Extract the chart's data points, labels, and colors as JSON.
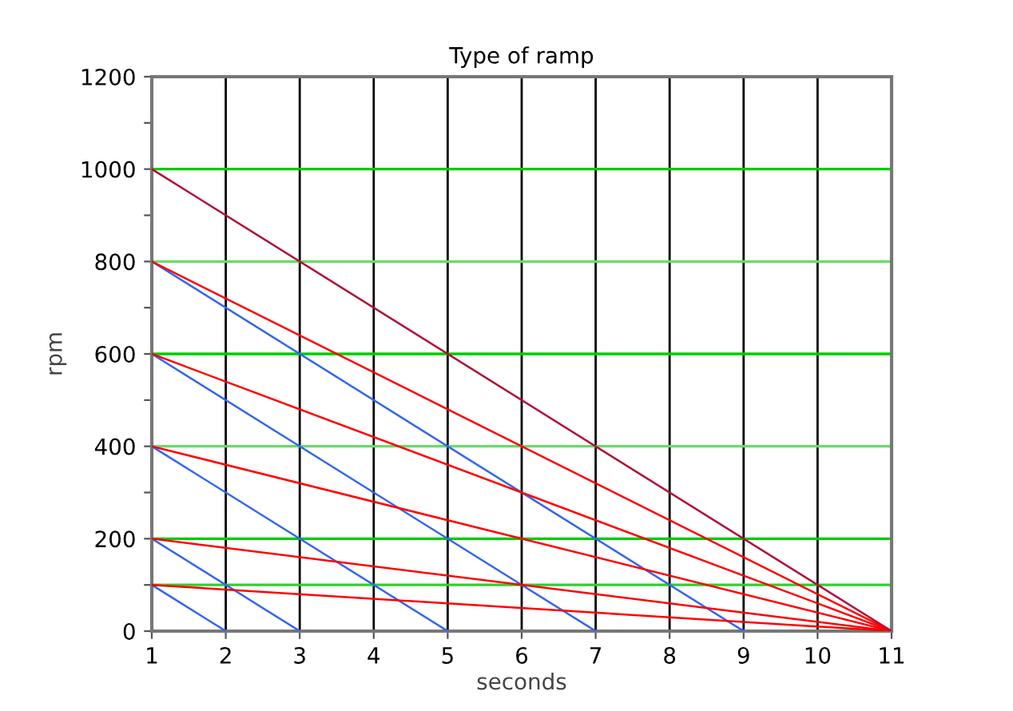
{
  "chart_data": {
    "type": "line",
    "title": "Type of ramp",
    "xlabel": "seconds",
    "ylabel": "rpm",
    "xlim": [
      1,
      11
    ],
    "xticks": [
      1,
      2,
      3,
      4,
      5,
      6,
      7,
      8,
      9,
      10,
      11
    ],
    "ylim": [
      0,
      1200
    ],
    "yticks": [
      0,
      {
        "value": 100,
        "label": null
      },
      200,
      {
        "value": 300,
        "label": null
      },
      400,
      {
        "value": 500,
        "label": null
      },
      600,
      {
        "value": 700,
        "label": null
      },
      800,
      {
        "value": 900,
        "label": null
      },
      1000,
      {
        "value": 1100,
        "label": null
      },
      1200
    ],
    "grid": "x",
    "marker": "none",
    "line_style": "solid",
    "ref_lines": [
      {
        "axis": "y",
        "value": 100,
        "color": "#33cc33"
      },
      {
        "axis": "y",
        "value": 200,
        "color": "#00cc00"
      },
      {
        "axis": "y",
        "value": 400,
        "color": "#66dd66"
      },
      {
        "axis": "y",
        "value": 600,
        "color": "#00cc00"
      },
      {
        "axis": "y",
        "value": 800,
        "color": "#66dd66"
      },
      {
        "axis": "y",
        "value": 1000,
        "color": "#00cc00"
      }
    ],
    "series": [
      {
        "color": "#3366ee",
        "x": [
          1,
          2
        ],
        "values": [
          100,
          0
        ]
      },
      {
        "color": "#3366ee",
        "x": [
          1,
          3
        ],
        "values": [
          200,
          0
        ]
      },
      {
        "color": "#3366ee",
        "x": [
          1,
          5
        ],
        "values": [
          400,
          0
        ]
      },
      {
        "color": "#3366ee",
        "x": [
          1,
          7
        ],
        "values": [
          600,
          0
        ]
      },
      {
        "color": "#3366ee",
        "x": [
          1,
          9
        ],
        "values": [
          800,
          0
        ]
      },
      {
        "color": "#ff0000",
        "x": [
          1,
          11
        ],
        "values": [
          100,
          0
        ]
      },
      {
        "color": "#ff0000",
        "x": [
          1,
          11
        ],
        "values": [
          200,
          0
        ]
      },
      {
        "color": "#ff0000",
        "x": [
          1,
          11
        ],
        "values": [
          400,
          0
        ]
      },
      {
        "color": "#ff0000",
        "x": [
          1,
          11
        ],
        "values": [
          600,
          0
        ]
      },
      {
        "color": "#ff0000",
        "x": [
          1,
          11
        ],
        "values": [
          800,
          0
        ]
      },
      {
        "color": "#b0103a",
        "x": [
          1,
          11
        ],
        "values": [
          1000,
          0
        ]
      }
    ]
  }
}
